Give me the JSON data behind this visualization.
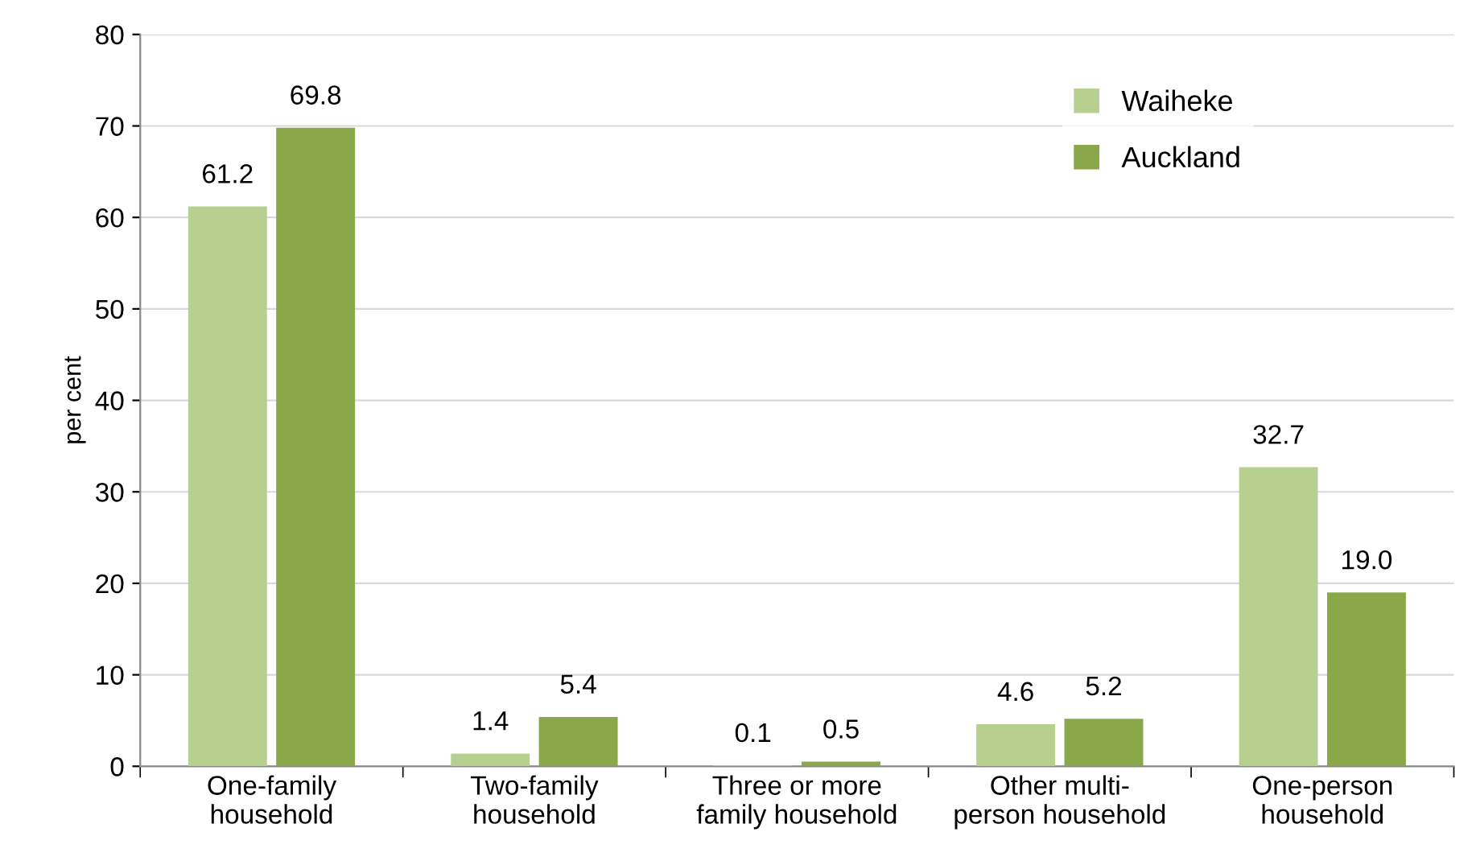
{
  "chart_data": {
    "type": "bar",
    "ylabel": "per cent",
    "categories": [
      "One-family\nhousehold",
      "Two-family\nhousehold",
      "Three or more\nfamily household",
      "Other multi-\nperson household",
      "One-person\nhousehold"
    ],
    "series": [
      {
        "name": "Waiheke",
        "color": "#b8d08f",
        "values": [
          61.2,
          1.4,
          0.1,
          4.6,
          32.7
        ],
        "value_labels": [
          "61.2",
          "1.4",
          "0.1",
          "4.6",
          "32.7"
        ]
      },
      {
        "name": "Auckland",
        "color": "#8aa84a",
        "values": [
          69.8,
          5.4,
          0.5,
          5.2,
          19.0
        ],
        "value_labels": [
          "69.8",
          "5.4",
          "0.5",
          "5.2",
          "19.0"
        ]
      }
    ],
    "ylim": [
      0,
      80
    ],
    "yticks": [
      0,
      10,
      20,
      30,
      40,
      50,
      60,
      70,
      80
    ],
    "grid": "y",
    "legend": "top right"
  }
}
